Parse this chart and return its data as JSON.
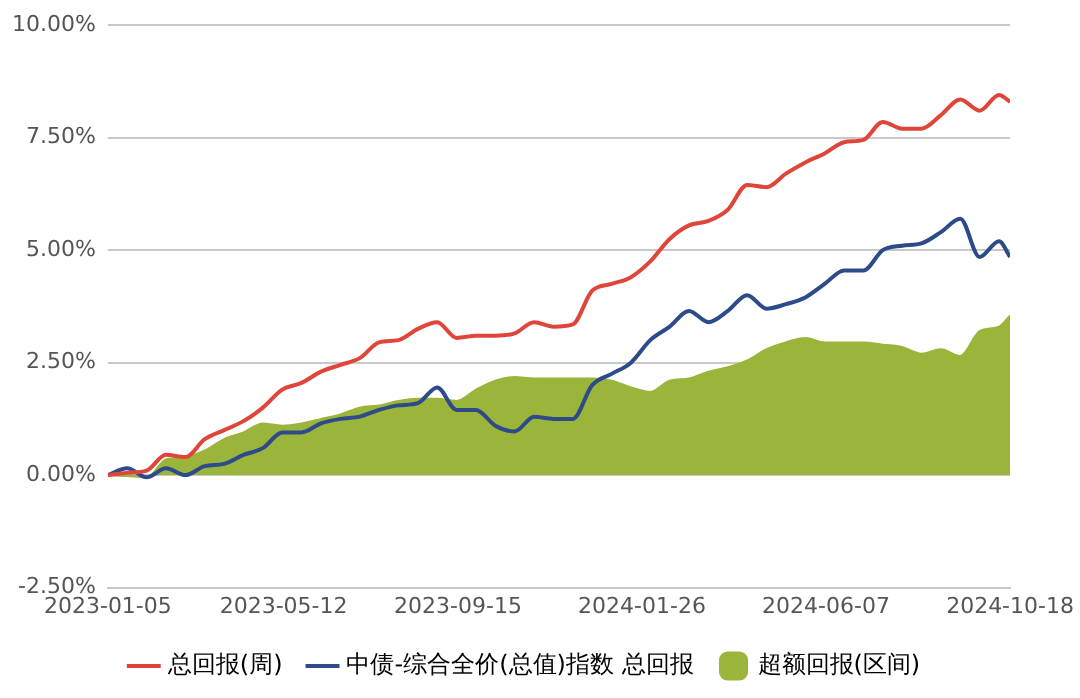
{
  "chart_data": {
    "type": "line",
    "x": [
      "2023-01-05",
      "2023-01-19",
      "2023-02-02",
      "2023-02-16",
      "2023-03-02",
      "2023-03-16",
      "2023-03-30",
      "2023-04-13",
      "2023-04-27",
      "2023-05-11",
      "2023-05-25",
      "2023-06-08",
      "2023-06-22",
      "2023-07-06",
      "2023-07-20",
      "2023-08-03",
      "2023-08-17",
      "2023-08-31",
      "2023-09-14",
      "2023-09-28",
      "2023-10-12",
      "2023-10-26",
      "2023-11-09",
      "2023-11-23",
      "2023-12-07",
      "2023-12-21",
      "2024-01-04",
      "2024-01-18",
      "2024-02-01",
      "2024-02-15",
      "2024-02-29",
      "2024-03-14",
      "2024-03-28",
      "2024-04-11",
      "2024-04-25",
      "2024-05-09",
      "2024-05-23",
      "2024-06-06",
      "2024-06-20",
      "2024-07-04",
      "2024-07-18",
      "2024-08-01",
      "2024-08-15",
      "2024-08-29",
      "2024-09-12",
      "2024-09-26",
      "2024-10-10",
      "2024-10-18"
    ],
    "series": [
      {
        "name": "总回报(周)",
        "color": "#e0453a",
        "values": [
          0,
          0.05,
          0.1,
          0.45,
          0.4,
          0.8,
          1.0,
          1.2,
          1.5,
          1.9,
          2.05,
          2.3,
          2.45,
          2.6,
          2.95,
          3.0,
          3.25,
          3.4,
          3.05,
          3.1,
          3.1,
          3.15,
          3.4,
          3.3,
          3.35,
          4.1,
          4.25,
          4.4,
          4.75,
          5.25,
          5.55,
          5.65,
          5.9,
          6.45,
          6.4,
          6.7,
          6.95,
          7.15,
          7.4,
          7.45,
          7.85,
          7.7,
          7.7,
          8.0,
          8.35,
          8.1,
          8.45,
          8.3
        ]
      },
      {
        "name": "中债-综合全价(总值)指数 总回报",
        "color": "#2d4a8a",
        "values": [
          0,
          0.15,
          -0.05,
          0.15,
          0,
          0.2,
          0.25,
          0.45,
          0.6,
          0.95,
          0.95,
          1.15,
          1.25,
          1.3,
          1.45,
          1.55,
          1.6,
          1.95,
          1.45,
          1.45,
          1.1,
          0.97,
          1.3,
          1.25,
          1.25,
          2.0,
          2.25,
          2.5,
          3.0,
          3.3,
          3.65,
          3.4,
          3.65,
          4.0,
          3.7,
          3.8,
          3.95,
          4.25,
          4.55,
          4.55,
          5.0,
          5.1,
          5.15,
          5.4,
          5.7,
          4.85,
          5.2,
          4.85
        ]
      },
      {
        "name": "超额回报(区间)",
        "type": "area",
        "color": "#9bb53a",
        "values": [
          0,
          -0.02,
          -0.05,
          0.35,
          0.4,
          0.55,
          0.8,
          0.95,
          1.15,
          1.1,
          1.15,
          1.25,
          1.35,
          1.5,
          1.55,
          1.65,
          1.7,
          1.7,
          1.65,
          1.9,
          2.1,
          2.18,
          2.15,
          2.15,
          2.15,
          2.15,
          2.1,
          1.95,
          1.85,
          2.1,
          2.15,
          2.3,
          2.4,
          2.55,
          2.8,
          2.95,
          3.05,
          2.95,
          2.95,
          2.95,
          2.9,
          2.85,
          2.7,
          2.8,
          2.65,
          3.2,
          3.3,
          3.55
        ]
      }
    ],
    "xlim": [
      "2023-01-05",
      "2024-10-18"
    ],
    "xticks": [
      "2023-01-05",
      "2023-05-12",
      "2023-09-15",
      "2024-01-26",
      "2024-06-07",
      "2024-10-18"
    ],
    "ylim": [
      -2.5,
      10
    ],
    "yticks": [
      {
        "value": -2.5,
        "label": "-2.50%"
      },
      {
        "value": 0,
        "label": "0.00%"
      },
      {
        "value": 2.5,
        "label": "2.50%"
      },
      {
        "value": 5,
        "label": "5.00%"
      },
      {
        "value": 7.5,
        "label": "7.50%"
      },
      {
        "value": 10,
        "label": "10.00%"
      }
    ],
    "grid": "y",
    "legend": "bottom",
    "marker": "none",
    "line_style": "solid"
  }
}
